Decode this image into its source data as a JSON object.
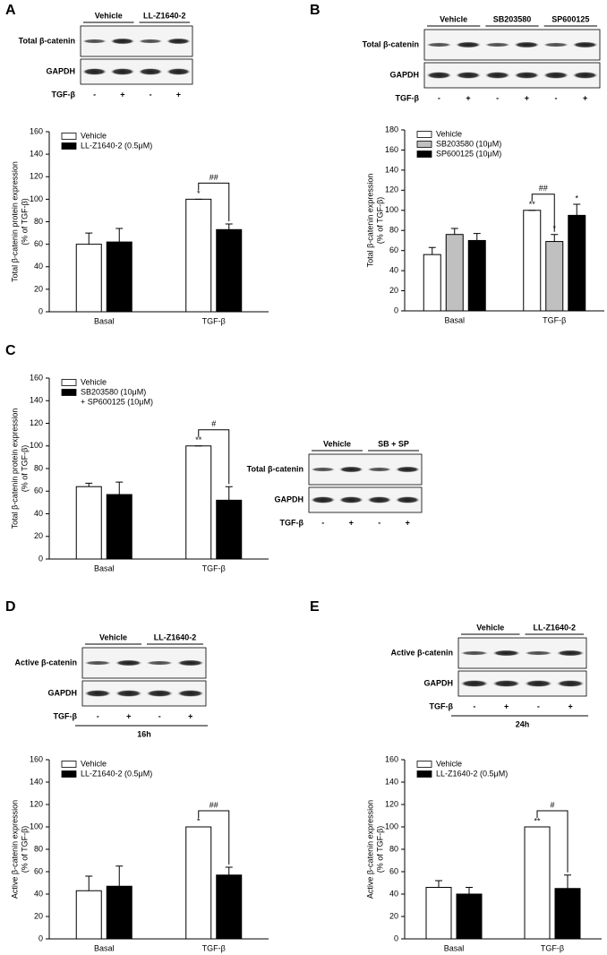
{
  "chart_data": [
    {
      "panel": "A",
      "type": "bar",
      "ylabel": [
        "Total β-catenin protein expression",
        "(% of TGF-β)"
      ],
      "categories": [
        "Basal",
        "TGF-β"
      ],
      "ylim": [
        0,
        160
      ],
      "yticks": [
        0,
        20,
        40,
        60,
        80,
        100,
        120,
        140,
        160
      ],
      "bracket": "##",
      "series": [
        {
          "name": [
            "Vehicle"
          ],
          "color": "#ffffff",
          "values": [
            60,
            100
          ],
          "errors": [
            10,
            0
          ],
          "sig": [
            null,
            "*"
          ]
        },
        {
          "name": [
            "LL-Z1640-2 (0.5μM)"
          ],
          "color": "#000000",
          "values": [
            62,
            73
          ],
          "errors": [
            12,
            5
          ],
          "sig": [
            null,
            null
          ]
        }
      ]
    },
    {
      "panel": "B",
      "type": "bar",
      "ylabel": [
        "Total β-catenin expression",
        "(% of TGF-β)"
      ],
      "categories": [
        "Basal",
        "TGF-β"
      ],
      "ylim": [
        0,
        180
      ],
      "yticks": [
        0,
        20,
        40,
        60,
        80,
        100,
        120,
        140,
        160,
        180
      ],
      "bracket": "##",
      "series": [
        {
          "name": [
            "Vehicle"
          ],
          "color": "#ffffff",
          "values": [
            56,
            100
          ],
          "errors": [
            7,
            0
          ],
          "sig": [
            null,
            "**"
          ]
        },
        {
          "name": [
            "SB203580 (10μM)"
          ],
          "color": "#c0c0c0",
          "values": [
            76,
            69
          ],
          "errors": [
            6,
            7
          ],
          "sig": [
            null,
            "*"
          ]
        },
        {
          "name": [
            "SP600125 (10μM)"
          ],
          "color": "#000000",
          "values": [
            70,
            95
          ],
          "errors": [
            7,
            11
          ],
          "sig": [
            null,
            "*"
          ]
        }
      ]
    },
    {
      "panel": "C",
      "type": "bar",
      "ylabel": [
        "Total β-catenin protein expression",
        "(% of TGF-β)"
      ],
      "categories": [
        "Basal",
        "TGF-β"
      ],
      "ylim": [
        0,
        160
      ],
      "yticks": [
        0,
        20,
        40,
        60,
        80,
        100,
        120,
        140,
        160
      ],
      "bracket": "#",
      "series": [
        {
          "name": [
            "Vehicle"
          ],
          "color": "#ffffff",
          "values": [
            64,
            100
          ],
          "errors": [
            3,
            0
          ],
          "sig": [
            null,
            "**"
          ]
        },
        {
          "name": [
            "SB203580 (10μM)",
            "+ SP600125 (10μM)"
          ],
          "color": "#000000",
          "values": [
            57,
            52
          ],
          "errors": [
            11,
            12
          ],
          "sig": [
            null,
            null
          ]
        }
      ]
    },
    {
      "panel": "D",
      "type": "bar",
      "ylabel": [
        "Active β-catenin expression",
        "(% of TGF-β)"
      ],
      "categories": [
        "Basal",
        "TGF-β"
      ],
      "ylim": [
        0,
        160
      ],
      "yticks": [
        0,
        20,
        40,
        60,
        80,
        100,
        120,
        140,
        160
      ],
      "bracket": "##",
      "series": [
        {
          "name": [
            "Vehicle"
          ],
          "color": "#ffffff",
          "values": [
            43,
            100
          ],
          "errors": [
            13,
            0
          ],
          "sig": [
            null,
            "*"
          ]
        },
        {
          "name": [
            "LL-Z1640-2 (0.5μM)"
          ],
          "color": "#000000",
          "values": [
            47,
            57
          ],
          "errors": [
            18,
            7
          ],
          "sig": [
            null,
            null
          ]
        }
      ]
    },
    {
      "panel": "E",
      "type": "bar",
      "ylabel": [
        "Active β-catenin expression",
        "(% of TGF-β)"
      ],
      "categories": [
        "Basal",
        "TGF-β"
      ],
      "ylim": [
        0,
        160
      ],
      "yticks": [
        0,
        20,
        40,
        60,
        80,
        100,
        120,
        140,
        160
      ],
      "bracket": "#",
      "series": [
        {
          "name": [
            "Vehicle"
          ],
          "color": "#ffffff",
          "values": [
            46,
            100
          ],
          "errors": [
            6,
            0
          ],
          "sig": [
            null,
            "**"
          ]
        },
        {
          "name": [
            "LL-Z1640-2 (0.5μM)"
          ],
          "color": "#000000",
          "values": [
            40,
            45
          ],
          "errors": [
            6,
            12
          ],
          "sig": [
            null,
            null
          ]
        }
      ]
    }
  ],
  "blots": [
    {
      "groups": [
        "Vehicle",
        "LL-Z1640-2"
      ],
      "rows": [
        "Total β-catenin",
        "GAPDH"
      ],
      "treatment": "TGF-β",
      "signs": [
        "-",
        "+",
        "-",
        "+"
      ]
    },
    {
      "groups": [
        "Vehicle",
        "SB203580",
        "SP600125"
      ],
      "rows": [
        "Total β-catenin",
        "GAPDH"
      ],
      "treatment": "TGF-β",
      "signs": [
        "-",
        "+",
        "-",
        "+",
        "-",
        "+"
      ]
    },
    {
      "groups": [
        "Vehicle",
        "SB + SP"
      ],
      "rows": [
        "Total β-catenin",
        "GAPDH"
      ],
      "treatment": "TGF-β",
      "signs": [
        "-",
        "+",
        "-",
        "+"
      ]
    },
    {
      "groups": [
        "Vehicle",
        "LL-Z1640-2"
      ],
      "rows": [
        "Active β-catenin",
        "GAPDH"
      ],
      "treatment": "TGF-β",
      "signs": [
        "-",
        "+",
        "-",
        "+"
      ],
      "time": "16h"
    },
    {
      "groups": [
        "Vehicle",
        "LL-Z1640-2"
      ],
      "rows": [
        "Active β-catenin",
        "GAPDH"
      ],
      "treatment": "TGF-β",
      "signs": [
        "-",
        "+",
        "-",
        "+"
      ],
      "time": "24h"
    }
  ]
}
